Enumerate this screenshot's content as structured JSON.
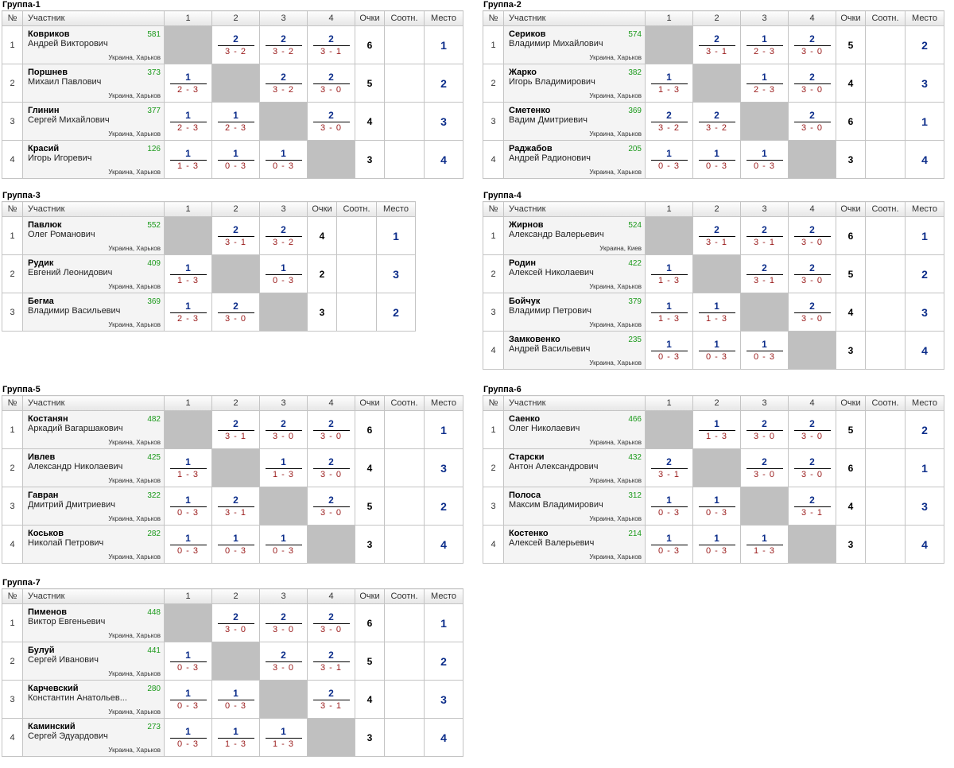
{
  "headers": {
    "no": "№",
    "participant": "Участник",
    "points": "Очки",
    "ratio": "Соотн.",
    "place": "Место"
  },
  "groups": [
    {
      "title": "Группа-1",
      "cols": [
        "1",
        "2",
        "3",
        "4"
      ],
      "players": [
        {
          "no": "1",
          "surname": "Ковриков",
          "given": "Андрей Викторович",
          "rating": "581",
          "city": "Украина, Харьков",
          "res": [
            null,
            [
              "2",
              "3 - 2"
            ],
            [
              "2",
              "3 - 2"
            ],
            [
              "2",
              "3 - 1"
            ]
          ],
          "points": "6",
          "ratio": "",
          "place": "1"
        },
        {
          "no": "2",
          "surname": "Поршнев",
          "given": "Михаил Павлович",
          "rating": "373",
          "city": "Украина, Харьков",
          "res": [
            [
              "1",
              "2 - 3"
            ],
            null,
            [
              "2",
              "3 - 2"
            ],
            [
              "2",
              "3 - 0"
            ]
          ],
          "points": "5",
          "ratio": "",
          "place": "2"
        },
        {
          "no": "3",
          "surname": "Глинин",
          "given": "Сергей Михайлович",
          "rating": "377",
          "city": "Украина, Харьков",
          "res": [
            [
              "1",
              "2 - 3"
            ],
            [
              "1",
              "2 - 3"
            ],
            null,
            [
              "2",
              "3 - 0"
            ]
          ],
          "points": "4",
          "ratio": "",
          "place": "3"
        },
        {
          "no": "4",
          "surname": "Красий",
          "given": "Игорь Игоревич",
          "rating": "126",
          "city": "Украина, Харьков",
          "res": [
            [
              "1",
              "1 - 3"
            ],
            [
              "1",
              "0 - 3"
            ],
            [
              "1",
              "0 - 3"
            ],
            null
          ],
          "points": "3",
          "ratio": "",
          "place": "4"
        }
      ]
    },
    {
      "title": "Группа-2",
      "cols": [
        "1",
        "2",
        "3",
        "4"
      ],
      "players": [
        {
          "no": "1",
          "surname": "Сериков",
          "given": "Владимир Михайлович",
          "rating": "574",
          "city": "Украина, Харьков",
          "res": [
            null,
            [
              "2",
              "3 - 1"
            ],
            [
              "1",
              "2 - 3"
            ],
            [
              "2",
              "3 - 0"
            ]
          ],
          "points": "5",
          "ratio": "",
          "place": "2"
        },
        {
          "no": "2",
          "surname": "Жарко",
          "given": "Игорь Владимирович",
          "rating": "382",
          "city": "Украина, Харьков",
          "res": [
            [
              "1",
              "1 - 3"
            ],
            null,
            [
              "1",
              "2 - 3"
            ],
            [
              "2",
              "3 - 0"
            ]
          ],
          "points": "4",
          "ratio": "",
          "place": "3"
        },
        {
          "no": "3",
          "surname": "Сметенко",
          "given": "Вадим Дмитриевич",
          "rating": "369",
          "city": "Украина, Харьков",
          "res": [
            [
              "2",
              "3 - 2"
            ],
            [
              "2",
              "3 - 2"
            ],
            null,
            [
              "2",
              "3 - 0"
            ]
          ],
          "points": "6",
          "ratio": "",
          "place": "1"
        },
        {
          "no": "4",
          "surname": "Раджабов",
          "given": "Андрей Радионович",
          "rating": "205",
          "city": "Украина, Харьков",
          "res": [
            [
              "1",
              "0 - 3"
            ],
            [
              "1",
              "0 - 3"
            ],
            [
              "1",
              "0 - 3"
            ],
            null
          ],
          "points": "3",
          "ratio": "",
          "place": "4"
        }
      ]
    },
    {
      "title": "Группа-3",
      "cols": [
        "1",
        "2",
        "3"
      ],
      "players": [
        {
          "no": "1",
          "surname": "Павлюк",
          "given": "Олег Романович",
          "rating": "552",
          "city": "Украина, Харьков",
          "res": [
            null,
            [
              "2",
              "3 - 1"
            ],
            [
              "2",
              "3 - 2"
            ]
          ],
          "points": "4",
          "ratio": "",
          "place": "1"
        },
        {
          "no": "2",
          "surname": "Рудик",
          "given": "Евгений Леонидович",
          "rating": "409",
          "city": "Украина, Харьков",
          "res": [
            [
              "1",
              "1 - 3"
            ],
            null,
            [
              "1",
              "0 - 3"
            ]
          ],
          "points": "2",
          "ratio": "",
          "place": "3"
        },
        {
          "no": "3",
          "surname": "Бегма",
          "given": "Владимир Васильевич",
          "rating": "369",
          "city": "Украина, Харьков",
          "res": [
            [
              "1",
              "2 - 3"
            ],
            [
              "2",
              "3 - 0"
            ],
            null
          ],
          "points": "3",
          "ratio": "",
          "place": "2"
        }
      ]
    },
    {
      "title": "Группа-4",
      "cols": [
        "1",
        "2",
        "3",
        "4"
      ],
      "players": [
        {
          "no": "1",
          "surname": "Жирнов",
          "given": "Александр Валерьевич",
          "rating": "524",
          "city": "Украина, Киев",
          "res": [
            null,
            [
              "2",
              "3 - 1"
            ],
            [
              "2",
              "3 - 1"
            ],
            [
              "2",
              "3 - 0"
            ]
          ],
          "points": "6",
          "ratio": "",
          "place": "1"
        },
        {
          "no": "2",
          "surname": "Родин",
          "given": "Алексей Николаевич",
          "rating": "422",
          "city": "Украина, Харьков",
          "res": [
            [
              "1",
              "1 - 3"
            ],
            null,
            [
              "2",
              "3 - 1"
            ],
            [
              "2",
              "3 - 0"
            ]
          ],
          "points": "5",
          "ratio": "",
          "place": "2"
        },
        {
          "no": "3",
          "surname": "Бойчук",
          "given": "Владимир Петрович",
          "rating": "379",
          "city": "Украина, Харьков",
          "res": [
            [
              "1",
              "1 - 3"
            ],
            [
              "1",
              "1 - 3"
            ],
            null,
            [
              "2",
              "3 - 0"
            ]
          ],
          "points": "4",
          "ratio": "",
          "place": "3"
        },
        {
          "no": "4",
          "surname": "Замковенко",
          "given": "Андрей Васильевич",
          "rating": "235",
          "city": "Украина, Харьков",
          "res": [
            [
              "1",
              "0 - 3"
            ],
            [
              "1",
              "0 - 3"
            ],
            [
              "1",
              "0 - 3"
            ],
            null
          ],
          "points": "3",
          "ratio": "",
          "place": "4"
        }
      ]
    },
    {
      "title": "Группа-5",
      "cols": [
        "1",
        "2",
        "3",
        "4"
      ],
      "players": [
        {
          "no": "1",
          "surname": "Костанян",
          "given": "Аркадий Вагаршакович",
          "rating": "482",
          "city": "Украина, Харьков",
          "res": [
            null,
            [
              "2",
              "3 - 1"
            ],
            [
              "2",
              "3 - 0"
            ],
            [
              "2",
              "3 - 0"
            ]
          ],
          "points": "6",
          "ratio": "",
          "place": "1"
        },
        {
          "no": "2",
          "surname": "Ивлев",
          "given": "Александр Николаевич",
          "rating": "425",
          "city": "Украина, Харьков",
          "res": [
            [
              "1",
              "1 - 3"
            ],
            null,
            [
              "1",
              "1 - 3"
            ],
            [
              "2",
              "3 - 0"
            ]
          ],
          "points": "4",
          "ratio": "",
          "place": "3"
        },
        {
          "no": "3",
          "surname": "Гавран",
          "given": "Дмитрий Дмитриевич",
          "rating": "322",
          "city": "Украина, Харьков",
          "res": [
            [
              "1",
              "0 - 3"
            ],
            [
              "2",
              "3 - 1"
            ],
            null,
            [
              "2",
              "3 - 0"
            ]
          ],
          "points": "5",
          "ratio": "",
          "place": "2"
        },
        {
          "no": "4",
          "surname": "Коськов",
          "given": "Николай Петрович",
          "rating": "282",
          "city": "Украина, Харьков",
          "res": [
            [
              "1",
              "0 - 3"
            ],
            [
              "1",
              "0 - 3"
            ],
            [
              "1",
              "0 - 3"
            ],
            null
          ],
          "points": "3",
          "ratio": "",
          "place": "4"
        }
      ]
    },
    {
      "title": "Группа-6",
      "cols": [
        "1",
        "2",
        "3",
        "4"
      ],
      "players": [
        {
          "no": "1",
          "surname": "Саенко",
          "given": "Олег Николаевич",
          "rating": "466",
          "city": "Украина, Харьков",
          "res": [
            null,
            [
              "1",
              "1 - 3"
            ],
            [
              "2",
              "3 - 0"
            ],
            [
              "2",
              "3 - 0"
            ]
          ],
          "points": "5",
          "ratio": "",
          "place": "2"
        },
        {
          "no": "2",
          "surname": "Старски",
          "given": "Антон Александрович",
          "rating": "432",
          "city": "Украина, Харьков",
          "res": [
            [
              "2",
              "3 - 1"
            ],
            null,
            [
              "2",
              "3 - 0"
            ],
            [
              "2",
              "3 - 0"
            ]
          ],
          "points": "6",
          "ratio": "",
          "place": "1"
        },
        {
          "no": "3",
          "surname": "Полоса",
          "given": "Максим Владимирович",
          "rating": "312",
          "city": "Украина, Харьков",
          "res": [
            [
              "1",
              "0 - 3"
            ],
            [
              "1",
              "0 - 3"
            ],
            null,
            [
              "2",
              "3 - 1"
            ]
          ],
          "points": "4",
          "ratio": "",
          "place": "3"
        },
        {
          "no": "4",
          "surname": "Костенко",
          "given": "Алексей Валерьевич",
          "rating": "214",
          "city": "Украина, Харьков",
          "res": [
            [
              "1",
              "0 - 3"
            ],
            [
              "1",
              "0 - 3"
            ],
            [
              "1",
              "1 - 3"
            ],
            null
          ],
          "points": "3",
          "ratio": "",
          "place": "4"
        }
      ]
    },
    {
      "title": "Группа-7",
      "cols": [
        "1",
        "2",
        "3",
        "4"
      ],
      "players": [
        {
          "no": "1",
          "surname": "Пименов",
          "given": "Виктор Евгеньевич",
          "rating": "448",
          "city": "Украина, Харьков",
          "res": [
            null,
            [
              "2",
              "3 - 0"
            ],
            [
              "2",
              "3 - 0"
            ],
            [
              "2",
              "3 - 0"
            ]
          ],
          "points": "6",
          "ratio": "",
          "place": "1"
        },
        {
          "no": "2",
          "surname": "Булуй",
          "given": "Сергей Иванович",
          "rating": "441",
          "city": "Украина, Харьков",
          "res": [
            [
              "1",
              "0 - 3"
            ],
            null,
            [
              "2",
              "3 - 0"
            ],
            [
              "2",
              "3 - 1"
            ]
          ],
          "points": "5",
          "ratio": "",
          "place": "2"
        },
        {
          "no": "3",
          "surname": "Карчевский",
          "given": "Константин Анатольев...",
          "rating": "280",
          "city": "Украина, Харьков",
          "res": [
            [
              "1",
              "0 - 3"
            ],
            [
              "1",
              "0 - 3"
            ],
            null,
            [
              "2",
              "3 - 1"
            ]
          ],
          "points": "4",
          "ratio": "",
          "place": "3"
        },
        {
          "no": "4",
          "surname": "Каминский",
          "given": "Сергей Эдуардович",
          "rating": "273",
          "city": "Украина, Харьков",
          "res": [
            [
              "1",
              "0 - 3"
            ],
            [
              "1",
              "1 - 3"
            ],
            [
              "1",
              "1 - 3"
            ],
            null
          ],
          "points": "3",
          "ratio": "",
          "place": "4"
        }
      ]
    }
  ]
}
